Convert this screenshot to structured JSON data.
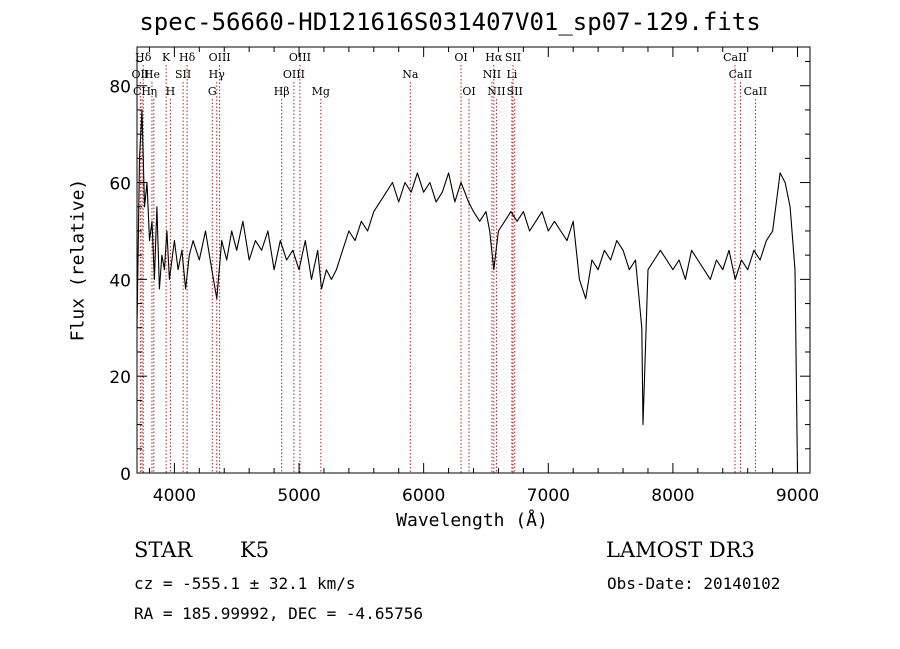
{
  "chart_data": {
    "type": "line",
    "title": "spec-56660-HD121616S031407V01_sp07-129.fits",
    "xlabel": "Wavelength (Å)",
    "ylabel": "Flux (relative)",
    "xlim": [
      3700,
      9100
    ],
    "ylim": [
      0,
      88
    ],
    "xticks": [
      4000,
      5000,
      6000,
      7000,
      8000,
      9000
    ],
    "yticks": [
      0,
      20,
      40,
      60,
      80
    ],
    "grid": false,
    "series": [
      {
        "color": "#000000",
        "x": [
          3700,
          3720,
          3740,
          3760,
          3780,
          3800,
          3820,
          3840,
          3860,
          3880,
          3900,
          3920,
          3940,
          3960,
          3980,
          4000,
          4030,
          4060,
          4090,
          4120,
          4150,
          4200,
          4250,
          4300,
          4340,
          4380,
          4420,
          4460,
          4500,
          4550,
          4600,
          4650,
          4700,
          4750,
          4800,
          4850,
          4900,
          4950,
          5000,
          5050,
          5100,
          5150,
          5180,
          5220,
          5260,
          5300,
          5350,
          5400,
          5450,
          5500,
          5550,
          5600,
          5650,
          5700,
          5750,
          5800,
          5850,
          5900,
          5950,
          6000,
          6050,
          6100,
          6150,
          6200,
          6250,
          6300,
          6330,
          6360,
          6400,
          6450,
          6500,
          6530,
          6563,
          6600,
          6650,
          6700,
          6750,
          6800,
          6850,
          6900,
          6950,
          7000,
          7050,
          7100,
          7150,
          7200,
          7250,
          7300,
          7350,
          7400,
          7450,
          7500,
          7550,
          7600,
          7650,
          7700,
          7750,
          7760,
          7800,
          7850,
          7900,
          7950,
          8000,
          8050,
          8100,
          8150,
          8200,
          8250,
          8300,
          8350,
          8400,
          8450,
          8500,
          8550,
          8600,
          8650,
          8700,
          8750,
          8800,
          8830,
          8860,
          8900,
          8940,
          8980,
          9000
        ],
        "y": [
          30,
          65,
          75,
          55,
          60,
          48,
          52,
          40,
          55,
          38,
          45,
          42,
          50,
          40,
          44,
          48,
          42,
          46,
          38,
          45,
          48,
          44,
          50,
          42,
          36,
          48,
          44,
          50,
          46,
          52,
          44,
          48,
          46,
          50,
          42,
          48,
          44,
          46,
          42,
          48,
          40,
          46,
          38,
          42,
          40,
          42,
          46,
          50,
          48,
          52,
          50,
          54,
          56,
          58,
          60,
          56,
          60,
          58,
          62,
          58,
          60,
          56,
          58,
          62,
          56,
          60,
          58,
          56,
          54,
          52,
          54,
          50,
          42,
          50,
          52,
          54,
          52,
          54,
          50,
          52,
          54,
          50,
          52,
          50,
          48,
          52,
          40,
          36,
          44,
          42,
          46,
          44,
          48,
          46,
          42,
          44,
          30,
          10,
          42,
          44,
          46,
          44,
          42,
          44,
          40,
          46,
          44,
          42,
          40,
          44,
          42,
          46,
          40,
          44,
          42,
          46,
          44,
          48,
          50,
          56,
          62,
          60,
          55,
          42,
          0
        ]
      }
    ],
    "line_markers": [
      {
        "label": "Hδ",
        "x": 3750,
        "row": 1
      },
      {
        "label": "K",
        "x": 3934,
        "row": 1
      },
      {
        "label": "Hδ",
        "x": 4102,
        "row": 1
      },
      {
        "label": "OIII",
        "x": 4363,
        "row": 1
      },
      {
        "label": "OIII",
        "x": 5007,
        "row": 1
      },
      {
        "label": "OI",
        "x": 6300,
        "row": 1
      },
      {
        "label": "Hα",
        "x": 6563,
        "row": 1
      },
      {
        "label": "SII",
        "x": 6717,
        "row": 1
      },
      {
        "label": "CaII",
        "x": 8498,
        "row": 1
      },
      {
        "label": "OII",
        "x": 3727,
        "row": 2
      },
      {
        "label": "He",
        "x": 3820,
        "row": 2
      },
      {
        "label": "SII",
        "x": 4070,
        "row": 2
      },
      {
        "label": "Hγ",
        "x": 4340,
        "row": 2
      },
      {
        "label": "OIII",
        "x": 4959,
        "row": 2
      },
      {
        "label": "Na",
        "x": 5893,
        "row": 2
      },
      {
        "label": "NII",
        "x": 6548,
        "row": 2
      },
      {
        "label": "Li",
        "x": 6708,
        "row": 2
      },
      {
        "label": "CaII",
        "x": 8542,
        "row": 2
      },
      {
        "label": "CH",
        "x": 3740,
        "row": 3
      },
      {
        "label": "η",
        "x": 3835,
        "row": 3
      },
      {
        "label": "H",
        "x": 3968,
        "row": 3
      },
      {
        "label": "G",
        "x": 4304,
        "row": 3
      },
      {
        "label": "Hβ",
        "x": 4861,
        "row": 3
      },
      {
        "label": "Mg",
        "x": 5175,
        "row": 3
      },
      {
        "label": "OI",
        "x": 6364,
        "row": 3
      },
      {
        "label": "NII",
        "x": 6584,
        "row": 3
      },
      {
        "label": "SII",
        "x": 6731,
        "row": 3
      },
      {
        "label": "CaII",
        "x": 8662,
        "row": 3
      }
    ],
    "marker_color": "#b22222"
  },
  "info": {
    "class": "STAR",
    "subclass": "K5",
    "survey": "LAMOST DR3",
    "cz": "cz = -555.1 ± 32.1 km/s",
    "obs_date": "Obs-Date: 20140102",
    "radec": "RA = 185.99992, DEC =  -4.65756"
  }
}
